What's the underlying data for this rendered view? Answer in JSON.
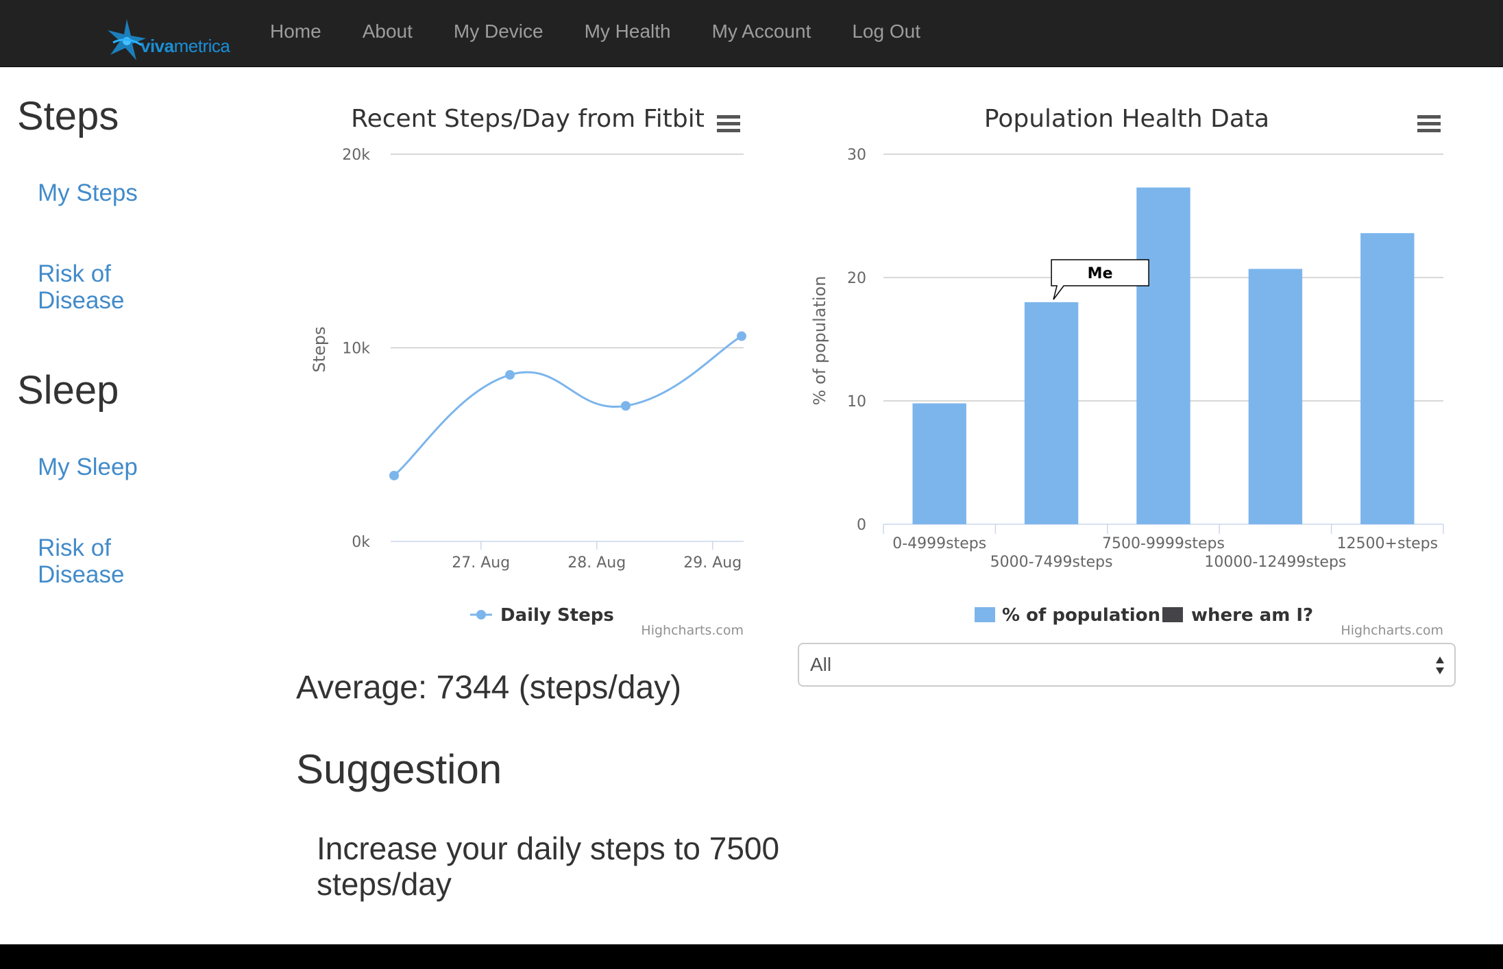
{
  "nav": {
    "brand": {
      "part1": "viva",
      "part2": "metrica"
    },
    "items": [
      "Home",
      "About",
      "My Device",
      "My Health",
      "My Account",
      "Log Out"
    ]
  },
  "sidebar": {
    "steps_heading": "Steps",
    "steps_links": [
      "My Steps",
      "Risk of\nDisease"
    ],
    "sleep_heading": "Sleep",
    "sleep_links": [
      "My Sleep",
      "Risk of\nDisease"
    ]
  },
  "chart_data": [
    {
      "type": "line",
      "title": "Recent Steps/Day from Fitbit",
      "ylabel": "Steps",
      "ylim": [
        0,
        20000
      ],
      "yticks": [
        "0k",
        "10k",
        "20k"
      ],
      "xticks": [
        "27. Aug",
        "28. Aug",
        "29. Aug"
      ],
      "series": [
        {
          "name": "Daily Steps",
          "x": [
            0,
            1,
            2,
            3
          ],
          "values": [
            3400,
            8600,
            7000,
            10600
          ]
        }
      ],
      "credits": "Highcharts.com",
      "color": "#7cb5ec"
    },
    {
      "type": "bar",
      "title": "Population Health Data",
      "ylabel": "% of population",
      "ylim": [
        0,
        30
      ],
      "yticks": [
        "0",
        "10",
        "20",
        "30"
      ],
      "categories": [
        "0-4999steps",
        "5000-7499steps",
        "7500-9999steps",
        "10000-12499steps",
        "12500+steps"
      ],
      "series": [
        {
          "name": "% of population",
          "values": [
            9.8,
            18,
            27.3,
            20.7,
            23.6
          ]
        }
      ],
      "legend": [
        "% of population",
        "where am I?"
      ],
      "annotation": {
        "text": "Me",
        "category_index": 1
      },
      "credits": "Highcharts.com",
      "colors": {
        "bar": "#7cb5ec",
        "me": "#434348"
      }
    }
  ],
  "filter": {
    "selected": "All"
  },
  "average_text": "Average: 7344 (steps/day)",
  "suggestion": {
    "heading": "Suggestion",
    "text": "Increase your daily steps to 7500 steps/day"
  }
}
